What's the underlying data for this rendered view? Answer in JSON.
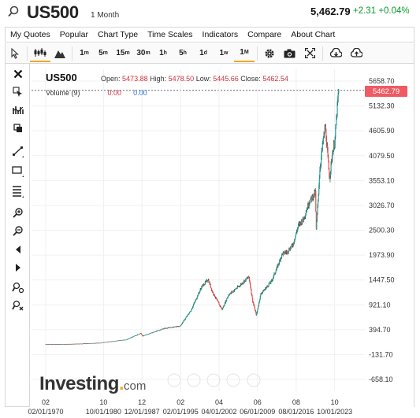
{
  "header": {
    "symbol": "US500",
    "period": "1 Month",
    "price": "5,462.79",
    "change": "+2.31",
    "change_pct": "+0.04%"
  },
  "menu": [
    "My Quotes",
    "Popular",
    "Chart Type",
    "Time Scales",
    "Indicators",
    "Compare",
    "About Chart"
  ],
  "toolbar": {
    "timeframes": [
      {
        "n": "1",
        "u": "m"
      },
      {
        "n": "5",
        "u": "m"
      },
      {
        "n": "15",
        "u": "m"
      },
      {
        "n": "30",
        "u": "m"
      },
      {
        "n": "1",
        "u": "h"
      },
      {
        "n": "5",
        "u": "h"
      },
      {
        "n": "1",
        "u": "d"
      },
      {
        "n": "1",
        "u": "w"
      },
      {
        "n": "1",
        "u": "M"
      }
    ],
    "selected_timeframe": "1M",
    "icons": [
      "pointer-icon",
      "candles-icon",
      "mountain-icon",
      "settings-icon",
      "camera-icon",
      "fullscreen-icon",
      "download-icon",
      "upload-icon"
    ]
  },
  "left_tools": [
    "close-icon",
    "trash-icon",
    "indicators-icon",
    "layers-icon",
    "trendline-icon",
    "rectangle-icon",
    "fibonacci-icon",
    "zoom-in-icon",
    "zoom-out-icon",
    "scroll-left-icon",
    "scroll-right-icon",
    "lock-icon",
    "magnet-icon"
  ],
  "legend": {
    "symbol": "US500",
    "open_label": "Open:",
    "open": "5473.88",
    "high_label": "High:",
    "high": "5478.50",
    "low_label": "Low:",
    "low": "5445.66",
    "close_label": "Close:",
    "close": "5462.54",
    "volume_label": "Volume (9)",
    "volume_val1": "0:00",
    "volume_val2": "0.00"
  },
  "current_price_tag": "5462.79",
  "logo": {
    "main": "Investing",
    "dot": ".",
    "suffix": "com"
  },
  "colors": {
    "up": "#26a69a",
    "down": "#ef5350",
    "price_tag": "#ef5a63",
    "accent": "#f5a623",
    "change": "#0a9a2c"
  },
  "chart_data": {
    "type": "line",
    "y_axis_ticks": [
      "5658.70",
      "5132.30",
      "4605.90",
      "4079.50",
      "3553.10",
      "3026.70",
      "2500.30",
      "1973.90",
      "1447.50",
      "921.10",
      "394.70",
      "-131.70",
      "-658.10"
    ],
    "ylim": [
      -658.1,
      5658.7
    ],
    "x_axis_top_labels": [
      "02",
      "10",
      "12",
      "02",
      "04",
      "06",
      "08",
      "10"
    ],
    "x_axis_bottom_labels": [
      "02/01/1970",
      "10/01/1980",
      "12/01/1987",
      "02/01/1995",
      "04/01/2002",
      "06/01/2009",
      "08/01/2016",
      "10/01/2023"
    ],
    "series": [
      {
        "x": [
          1970,
          1975,
          1980,
          1985,
          1987.7,
          1988,
          1990,
          1992,
          1995,
          1997,
          1999,
          2000.2,
          2001,
          2002.8,
          2004,
          2006,
          2007.8,
          2008.5,
          2009.2,
          2010,
          2012,
          2013,
          2014,
          2015,
          2016,
          2017,
          2018,
          2019,
          2020.2,
          2020.3,
          2020.8,
          2021,
          2021.5,
          2022,
          2022.8,
          2023.3,
          2023.8,
          2024.3,
          2024.5
        ],
        "y": [
          85,
          90,
          115,
          185,
          320,
          260,
          340,
          420,
          470,
          800,
          1300,
          1460,
          1200,
          820,
          1130,
          1320,
          1520,
          1000,
          700,
          1150,
          1420,
          1700,
          2000,
          2050,
          2200,
          2600,
          2750,
          3100,
          3300,
          2450,
          3400,
          3800,
          4300,
          4700,
          3600,
          4100,
          4400,
          5200,
          5462
        ]
      }
    ]
  }
}
